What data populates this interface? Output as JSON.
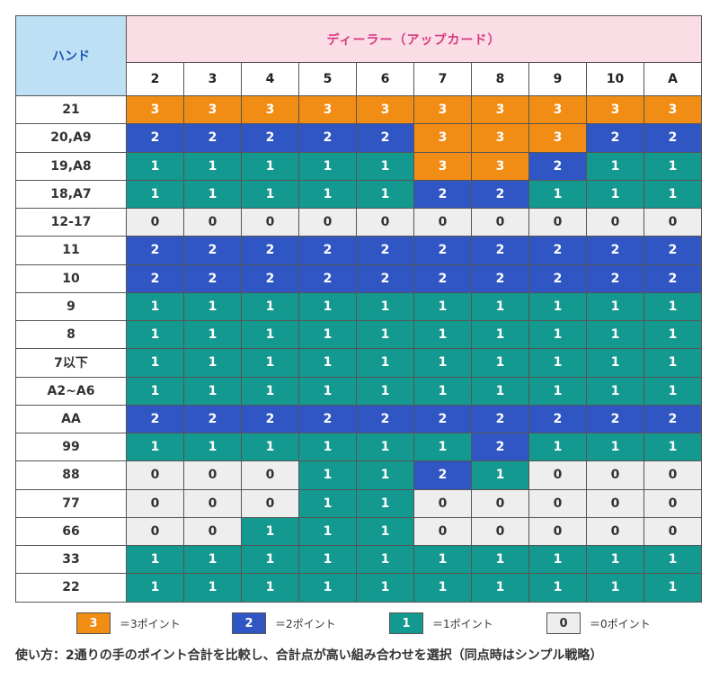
{
  "header": {
    "hand_label": "ハンド",
    "dealer_title": "ディーラー（アップカード）"
  },
  "upcards": [
    "2",
    "3",
    "4",
    "5",
    "6",
    "7",
    "8",
    "9",
    "10",
    "A"
  ],
  "rows": [
    {
      "hand": "21",
      "values": [
        3,
        3,
        3,
        3,
        3,
        3,
        3,
        3,
        3,
        3
      ]
    },
    {
      "hand": "20,A9",
      "values": [
        2,
        2,
        2,
        2,
        2,
        3,
        3,
        3,
        2,
        2
      ]
    },
    {
      "hand": "19,A8",
      "values": [
        1,
        1,
        1,
        1,
        1,
        3,
        3,
        2,
        1,
        1
      ]
    },
    {
      "hand": "18,A7",
      "values": [
        1,
        1,
        1,
        1,
        1,
        2,
        2,
        1,
        1,
        1
      ]
    },
    {
      "hand": "12-17",
      "values": [
        0,
        0,
        0,
        0,
        0,
        0,
        0,
        0,
        0,
        0
      ]
    },
    {
      "hand": "11",
      "values": [
        2,
        2,
        2,
        2,
        2,
        2,
        2,
        2,
        2,
        2
      ]
    },
    {
      "hand": "10",
      "values": [
        2,
        2,
        2,
        2,
        2,
        2,
        2,
        2,
        2,
        2
      ]
    },
    {
      "hand": "9",
      "values": [
        1,
        1,
        1,
        1,
        1,
        1,
        1,
        1,
        1,
        1
      ]
    },
    {
      "hand": "8",
      "values": [
        1,
        1,
        1,
        1,
        1,
        1,
        1,
        1,
        1,
        1
      ]
    },
    {
      "hand": "7以下",
      "values": [
        1,
        1,
        1,
        1,
        1,
        1,
        1,
        1,
        1,
        1
      ]
    },
    {
      "hand": "A2~A6",
      "values": [
        1,
        1,
        1,
        1,
        1,
        1,
        1,
        1,
        1,
        1
      ]
    },
    {
      "hand": "AA",
      "values": [
        2,
        2,
        2,
        2,
        2,
        2,
        2,
        2,
        2,
        2
      ]
    },
    {
      "hand": "99",
      "values": [
        1,
        1,
        1,
        1,
        1,
        1,
        2,
        1,
        1,
        1
      ]
    },
    {
      "hand": "88",
      "values": [
        0,
        0,
        0,
        1,
        1,
        2,
        1,
        0,
        0,
        0
      ]
    },
    {
      "hand": "77",
      "values": [
        0,
        0,
        0,
        1,
        1,
        0,
        0,
        0,
        0,
        0
      ]
    },
    {
      "hand": "66",
      "values": [
        0,
        0,
        1,
        1,
        1,
        0,
        0,
        0,
        0,
        0
      ]
    },
    {
      "hand": "33",
      "values": [
        1,
        1,
        1,
        1,
        1,
        1,
        1,
        1,
        1,
        1
      ]
    },
    {
      "hand": "22",
      "values": [
        1,
        1,
        1,
        1,
        1,
        1,
        1,
        1,
        1,
        1
      ]
    }
  ],
  "colors": {
    "3": "#f18c14",
    "2": "#3056c4",
    "1": "#13998f",
    "0": "#eeeeee"
  },
  "legend": [
    {
      "value": "3",
      "label": "＝3ポイント"
    },
    {
      "value": "2",
      "label": "＝2ポイント"
    },
    {
      "value": "1",
      "label": "＝1ポイント"
    },
    {
      "value": "0",
      "label": "＝0ポイント"
    }
  ],
  "note": "使い方：2通りの手のポイント合計を比較し、合計点が高い組み合わせを選択（同点時はシンプル戦略）"
}
